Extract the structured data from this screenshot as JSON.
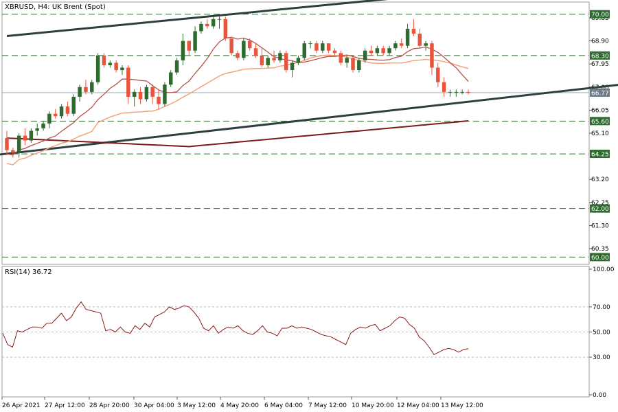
{
  "chart_title": "XBRUSD, H4:  UK Brent (Spot)",
  "rsi_title": "RSI(14) 36.72",
  "colors": {
    "bull": "#2e6b2e",
    "bear": "#e8553d",
    "ma_fast": "#b5524a",
    "ma_mid": "#f4a27a",
    "ma_slow": "#7a1a1a",
    "channel": "#2f3f3f",
    "level_line": "#2e6b2e",
    "current_badge": "#6b7b86",
    "rsi_line": "#8b1a1a"
  },
  "chart_data": [
    {
      "type": "candlestick",
      "title": "XBRUSD, H4:  UK Brent (Spot)",
      "ylim": [
        59.7,
        70.5
      ],
      "x_tick_labels": [
        "26 Apr 2021",
        "27 Apr 12:00",
        "28 Apr 20:00",
        "30 Apr 04:00",
        "3 May 12:00",
        "4 May 20:00",
        "6 May 04:00",
        "7 May 12:00",
        "10 May 20:00",
        "12 May 04:00",
        "13 May 12:00"
      ],
      "y_tick_labels": [
        "69.85",
        "68.90",
        "67.95",
        "67.00",
        "66.05",
        "65.10",
        "63.20",
        "62.25",
        "61.30",
        "60.35"
      ],
      "horizontal_levels": [
        "70.00",
        "68.30",
        "65.60",
        "64.25",
        "62.00",
        "60.00"
      ],
      "current_price": "66.77",
      "candles": [
        [
          64.9,
          65.2,
          64.2,
          64.4
        ],
        [
          64.4,
          64.5,
          64.1,
          64.3
        ],
        [
          64.3,
          65.1,
          64.1,
          65.0
        ],
        [
          65.0,
          65.3,
          64.6,
          64.8
        ],
        [
          64.8,
          65.3,
          64.7,
          65.2
        ],
        [
          65.2,
          65.5,
          65.0,
          65.3
        ],
        [
          65.3,
          65.6,
          65.2,
          65.5
        ],
        [
          65.5,
          66.0,
          65.3,
          65.9
        ],
        [
          65.9,
          66.1,
          65.7,
          65.8
        ],
        [
          65.8,
          66.3,
          65.7,
          66.2
        ],
        [
          66.2,
          66.4,
          65.8,
          65.9
        ],
        [
          65.9,
          66.7,
          65.8,
          66.6
        ],
        [
          66.6,
          67.1,
          66.4,
          67.0
        ],
        [
          67.0,
          67.3,
          66.7,
          66.8
        ],
        [
          66.8,
          67.3,
          66.7,
          67.2
        ],
        [
          67.2,
          68.4,
          67.1,
          68.3
        ],
        [
          68.3,
          68.4,
          67.8,
          67.9
        ],
        [
          67.9,
          68.1,
          67.8,
          68.0
        ],
        [
          68.0,
          68.1,
          67.6,
          67.7
        ],
        [
          67.7,
          67.9,
          67.5,
          67.8
        ],
        [
          67.8,
          67.9,
          66.3,
          66.6
        ],
        [
          66.6,
          66.9,
          66.2,
          66.8
        ],
        [
          66.8,
          67.0,
          66.3,
          66.5
        ],
        [
          66.5,
          67.1,
          66.4,
          67.0
        ],
        [
          67.0,
          67.1,
          66.3,
          66.6
        ],
        [
          66.6,
          66.9,
          66.1,
          66.3
        ],
        [
          66.3,
          67.2,
          66.2,
          67.1
        ],
        [
          67.1,
          67.7,
          67.0,
          67.6
        ],
        [
          67.6,
          68.2,
          67.5,
          68.1
        ],
        [
          68.1,
          69.2,
          67.9,
          68.9
        ],
        [
          68.9,
          68.9,
          68.3,
          68.5
        ],
        [
          68.5,
          69.5,
          68.4,
          69.3
        ],
        [
          69.3,
          69.7,
          69.2,
          69.6
        ],
        [
          69.6,
          69.8,
          69.4,
          69.5
        ],
        [
          69.5,
          69.9,
          69.4,
          69.8
        ],
        [
          69.8,
          69.9,
          69.4,
          69.8
        ],
        [
          69.8,
          69.9,
          68.9,
          69.0
        ],
        [
          69.0,
          69.0,
          68.3,
          68.4
        ],
        [
          68.4,
          68.5,
          68.1,
          68.2
        ],
        [
          68.2,
          69.0,
          68.1,
          68.9
        ],
        [
          68.9,
          69.0,
          68.5,
          68.6
        ],
        [
          68.6,
          68.8,
          68.2,
          68.3
        ],
        [
          68.3,
          68.6,
          67.8,
          67.9
        ],
        [
          67.9,
          68.3,
          67.8,
          68.2
        ],
        [
          68.2,
          68.5,
          68.0,
          68.1
        ],
        [
          68.1,
          68.5,
          68.0,
          68.4
        ],
        [
          68.4,
          68.5,
          67.6,
          67.7
        ],
        [
          67.7,
          68.1,
          67.4,
          68.0
        ],
        [
          68.0,
          68.3,
          67.9,
          68.2
        ],
        [
          68.2,
          68.9,
          68.1,
          68.8
        ],
        [
          68.8,
          68.9,
          68.6,
          68.8
        ],
        [
          68.8,
          68.9,
          68.4,
          68.5
        ],
        [
          68.5,
          68.9,
          68.4,
          68.8
        ],
        [
          68.8,
          68.8,
          68.4,
          68.5
        ],
        [
          68.5,
          68.6,
          68.3,
          68.4
        ],
        [
          68.4,
          68.5,
          67.9,
          68.0
        ],
        [
          68.0,
          68.3,
          67.8,
          68.2
        ],
        [
          68.2,
          68.3,
          67.6,
          67.7
        ],
        [
          67.7,
          68.2,
          67.6,
          68.1
        ],
        [
          68.1,
          68.6,
          68.0,
          68.5
        ],
        [
          68.5,
          68.7,
          68.3,
          68.4
        ],
        [
          68.4,
          68.7,
          68.3,
          68.6
        ],
        [
          68.6,
          68.7,
          68.3,
          68.4
        ],
        [
          68.4,
          68.7,
          68.3,
          68.6
        ],
        [
          68.6,
          68.9,
          68.5,
          68.8
        ],
        [
          68.8,
          69.0,
          68.6,
          68.7
        ],
        [
          68.7,
          69.6,
          68.6,
          69.4
        ],
        [
          69.4,
          69.8,
          69.1,
          69.2
        ],
        [
          69.2,
          69.4,
          68.6,
          68.7
        ],
        [
          68.7,
          68.9,
          68.5,
          68.8
        ],
        [
          68.8,
          68.9,
          67.5,
          67.8
        ],
        [
          67.8,
          68.0,
          67.0,
          67.2
        ],
        [
          67.2,
          67.4,
          66.6,
          66.8
        ],
        [
          66.8,
          66.9,
          66.6,
          66.8
        ],
        [
          66.8,
          66.9,
          66.6,
          66.8
        ],
        [
          66.8,
          66.9,
          66.7,
          66.8
        ],
        [
          66.8,
          66.9,
          66.7,
          66.77
        ]
      ]
    },
    {
      "type": "line",
      "title": "RSI(14) 36.72",
      "ylim": [
        0,
        100
      ],
      "y_tick_labels": [
        "100.00",
        "70.00",
        "50.00",
        "30.00",
        "0.00"
      ],
      "levels": [
        70,
        50,
        30
      ],
      "series": [
        {
          "values": [
            49,
            40,
            38,
            51,
            50,
            52,
            54,
            54,
            53,
            57,
            57,
            61,
            65,
            59,
            62,
            69,
            74,
            68,
            67,
            66,
            65,
            51,
            52,
            50,
            54,
            50,
            49,
            55,
            52,
            57,
            54,
            62,
            64,
            66,
            70,
            68,
            69,
            71,
            70,
            66,
            61,
            53,
            51,
            55,
            49,
            52,
            54,
            53,
            55,
            51,
            49,
            48,
            51,
            55,
            50,
            49,
            47,
            53,
            53,
            55,
            53,
            54,
            53,
            52,
            50,
            48,
            47,
            46,
            44,
            42,
            40,
            49,
            52,
            54,
            53,
            55,
            56,
            51,
            53,
            55,
            59,
            62,
            61,
            56,
            53,
            46,
            43,
            38,
            32,
            34,
            36,
            37,
            36,
            34,
            36,
            36.72
          ]
        }
      ]
    }
  ]
}
